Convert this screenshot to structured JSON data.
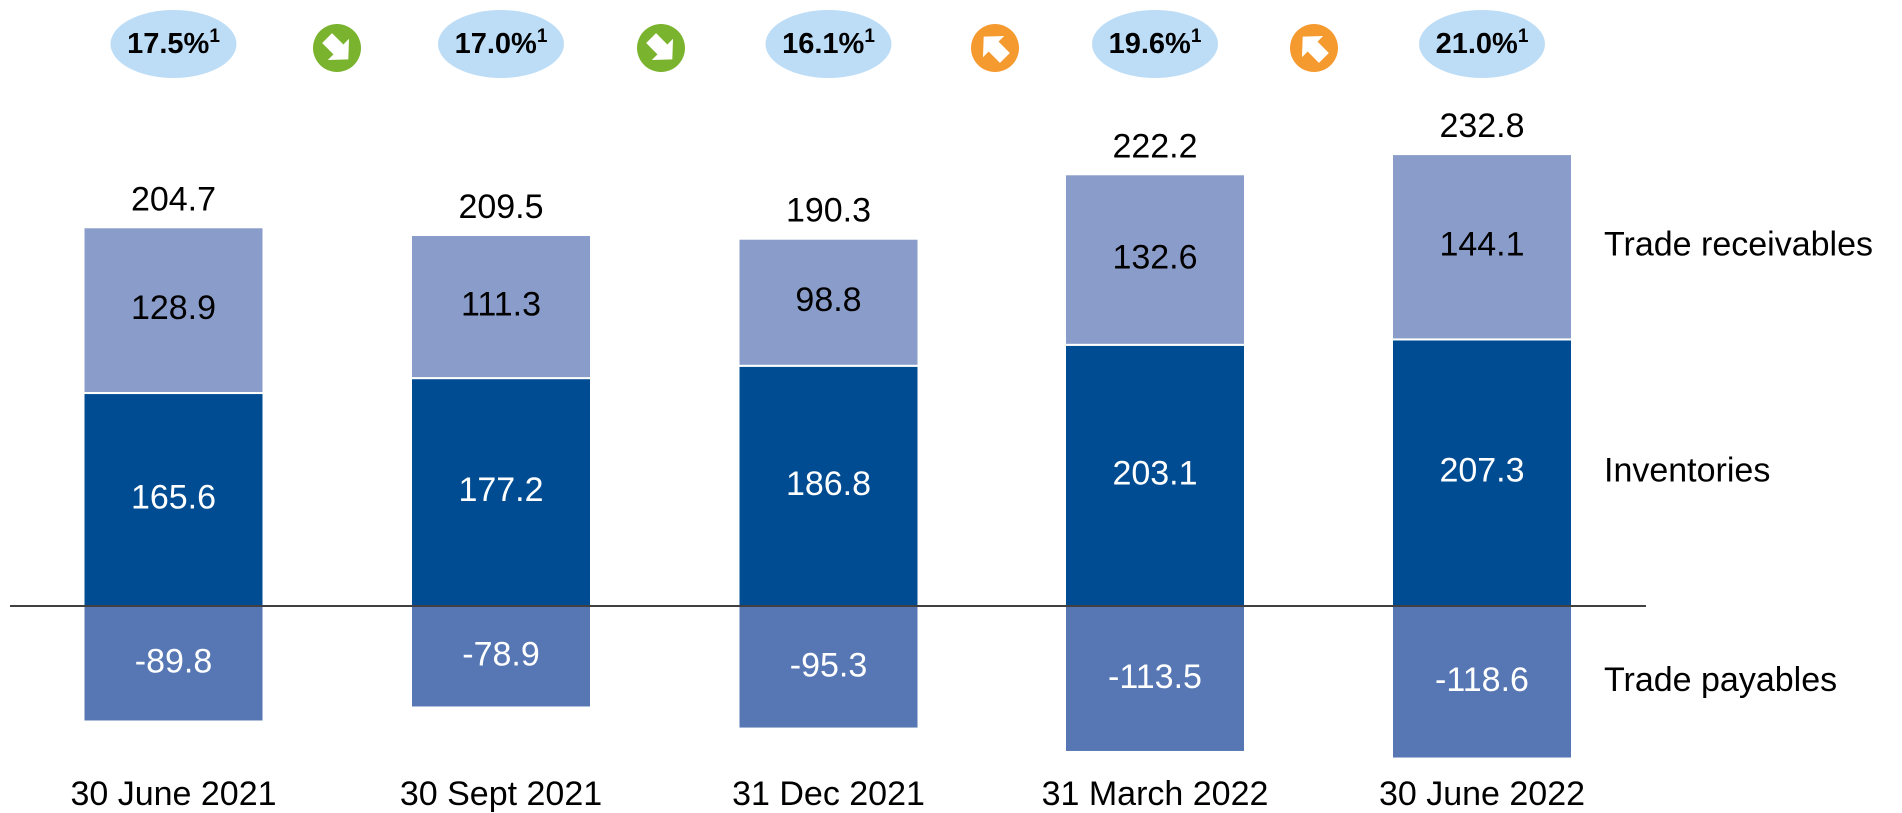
{
  "chart_data": {
    "type": "stacked_bar",
    "categories": [
      "30 June 2021",
      "30 Sept 2021",
      "31 Dec 2021",
      "31 March 2022",
      "30 June 2022"
    ],
    "series": [
      {
        "name": "Inventories",
        "color": "#004c93",
        "values": [
          165.6,
          177.2,
          186.8,
          203.1,
          207.3
        ]
      },
      {
        "name": "Trade receivables",
        "color": "#8a9cc9",
        "values": [
          128.9,
          111.3,
          98.8,
          132.6,
          144.1
        ]
      },
      {
        "name": "Trade payables",
        "color": "#5677b3",
        "values": [
          -89.8,
          -78.9,
          -95.3,
          -113.5,
          -118.6
        ]
      }
    ],
    "totals": [
      "204.7",
      "209.5",
      "190.3",
      "222.2",
      "232.8"
    ],
    "badges": [
      "17.5%",
      "17.0%",
      "16.1%",
      "19.6%",
      "21.0%"
    ],
    "badge_footnote": "1",
    "trend": [
      "down",
      "down",
      "up",
      "up"
    ],
    "trend_colors": {
      "down": "#7ab32e",
      "up": "#f59a2f"
    }
  }
}
